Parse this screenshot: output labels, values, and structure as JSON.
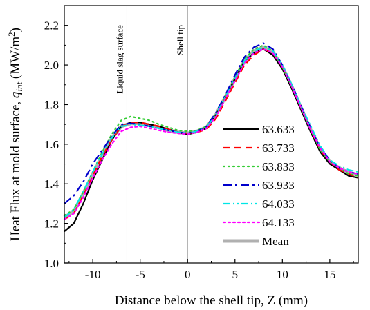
{
  "chart_data": {
    "type": "line",
    "xlabel": "Distance below the shell tip, Z (mm)",
    "ylabel": {
      "main": "Heat Flux at mold surface, ",
      "q": "q",
      "sub": "int",
      "unit": " (MW/m",
      "sup": "2",
      "close": ")"
    },
    "xlim": [
      -13,
      18
    ],
    "ylim": [
      1.0,
      2.3
    ],
    "xticks": [
      -10,
      -5,
      0,
      5,
      10,
      15
    ],
    "yticks": [
      1.0,
      1.2,
      1.4,
      1.6,
      1.8,
      2.0,
      2.2
    ],
    "annotations": [
      {
        "text": "Liquid slag surface",
        "x": -6.4
      },
      {
        "text": "Shell tip",
        "x": 0
      }
    ],
    "legend_position": "center-right",
    "series": [
      {
        "name": "63.633",
        "color": "#000000",
        "style": "solid",
        "x": [
          -13,
          -12,
          -11,
          -10,
          -9,
          -8,
          -7,
          -6,
          -5,
          -4,
          -3,
          -2,
          -1,
          0,
          1,
          2,
          3,
          4,
          5,
          6,
          7,
          8,
          9,
          10,
          11,
          12,
          13,
          14,
          15,
          16,
          17,
          18
        ],
        "y": [
          1.16,
          1.2,
          1.3,
          1.42,
          1.52,
          1.62,
          1.69,
          1.71,
          1.71,
          1.7,
          1.69,
          1.675,
          1.66,
          1.65,
          1.66,
          1.68,
          1.75,
          1.84,
          1.93,
          2.02,
          2.06,
          2.08,
          2.05,
          1.98,
          1.88,
          1.77,
          1.66,
          1.56,
          1.5,
          1.47,
          1.44,
          1.43
        ]
      },
      {
        "name": "63.733",
        "color": "#ff0000",
        "style": "dash",
        "x": [
          -13,
          -12,
          -11,
          -10,
          -9,
          -8,
          -7,
          -6,
          -5,
          -4,
          -3,
          -2,
          -1,
          0,
          1,
          2,
          3,
          4,
          5,
          6,
          7,
          8,
          9,
          10,
          11,
          12,
          13,
          14,
          15,
          16,
          17,
          18
        ],
        "y": [
          1.22,
          1.25,
          1.34,
          1.44,
          1.54,
          1.62,
          1.69,
          1.71,
          1.71,
          1.7,
          1.69,
          1.675,
          1.66,
          1.655,
          1.66,
          1.675,
          1.73,
          1.82,
          1.91,
          2.0,
          2.05,
          2.08,
          2.06,
          1.99,
          1.89,
          1.78,
          1.67,
          1.57,
          1.51,
          1.47,
          1.45,
          1.43
        ]
      },
      {
        "name": "63.833",
        "color": "#33cc33",
        "style": "dot",
        "x": [
          -13,
          -12,
          -11,
          -10,
          -9,
          -8,
          -7,
          -6,
          -5,
          -4,
          -3,
          -2,
          -1,
          0,
          1,
          2,
          3,
          4,
          5,
          6,
          7,
          8,
          9,
          10,
          11,
          12,
          13,
          14,
          15,
          16,
          17,
          18
        ],
        "y": [
          1.24,
          1.27,
          1.36,
          1.46,
          1.56,
          1.65,
          1.72,
          1.74,
          1.73,
          1.72,
          1.7,
          1.685,
          1.67,
          1.665,
          1.67,
          1.69,
          1.75,
          1.84,
          1.94,
          2.03,
          2.08,
          2.1,
          2.07,
          1.99,
          1.89,
          1.78,
          1.67,
          1.57,
          1.51,
          1.48,
          1.45,
          1.44
        ]
      },
      {
        "name": "63.933",
        "color": "#0000cc",
        "style": "dashdot",
        "x": [
          -13,
          -12,
          -11,
          -10,
          -9,
          -8,
          -7,
          -6,
          -5,
          -4,
          -3,
          -2,
          -1,
          0,
          1,
          2,
          3,
          4,
          5,
          6,
          7,
          8,
          9,
          10,
          11,
          12,
          13,
          14,
          15,
          16,
          17,
          18
        ],
        "y": [
          1.3,
          1.34,
          1.41,
          1.5,
          1.57,
          1.64,
          1.7,
          1.705,
          1.7,
          1.69,
          1.68,
          1.67,
          1.66,
          1.655,
          1.665,
          1.69,
          1.76,
          1.85,
          1.95,
          2.04,
          2.09,
          2.11,
          2.08,
          2.0,
          1.9,
          1.79,
          1.68,
          1.58,
          1.52,
          1.48,
          1.46,
          1.45
        ]
      },
      {
        "name": "64.033",
        "color": "#00e5e5",
        "style": "dashdotdot",
        "x": [
          -13,
          -12,
          -11,
          -10,
          -9,
          -8,
          -7,
          -6,
          -5,
          -4,
          -3,
          -2,
          -1,
          0,
          1,
          2,
          3,
          4,
          5,
          6,
          7,
          8,
          9,
          10,
          11,
          12,
          13,
          14,
          15,
          16,
          17,
          18
        ],
        "y": [
          1.23,
          1.27,
          1.36,
          1.46,
          1.55,
          1.63,
          1.69,
          1.7,
          1.695,
          1.69,
          1.68,
          1.67,
          1.66,
          1.655,
          1.665,
          1.685,
          1.75,
          1.84,
          1.93,
          2.02,
          2.07,
          2.09,
          2.07,
          2.0,
          1.9,
          1.79,
          1.69,
          1.59,
          1.52,
          1.49,
          1.47,
          1.46
        ]
      },
      {
        "name": "64.133",
        "color": "#ff00ff",
        "style": "shortdot",
        "x": [
          -13,
          -12,
          -11,
          -10,
          -9,
          -8,
          -7,
          -6,
          -5,
          -4,
          -3,
          -2,
          -1,
          0,
          1,
          2,
          3,
          4,
          5,
          6,
          7,
          8,
          9,
          10,
          11,
          12,
          13,
          14,
          15,
          16,
          17,
          18
        ],
        "y": [
          1.22,
          1.25,
          1.33,
          1.43,
          1.52,
          1.6,
          1.665,
          1.685,
          1.69,
          1.68,
          1.67,
          1.66,
          1.655,
          1.65,
          1.66,
          1.68,
          1.74,
          1.83,
          1.92,
          2.01,
          2.06,
          2.08,
          2.06,
          1.99,
          1.89,
          1.78,
          1.67,
          1.58,
          1.51,
          1.48,
          1.46,
          1.45
        ]
      },
      {
        "name": "Mean",
        "color": "#b0b0b0",
        "style": "thick",
        "x": [
          -13,
          -12,
          -11,
          -10,
          -9,
          -8,
          -7,
          -6,
          -5,
          -4,
          -3,
          -2,
          -1,
          0,
          1,
          2,
          3,
          4,
          5,
          6,
          7,
          8,
          9,
          10,
          11,
          12,
          13,
          14,
          15,
          16,
          17,
          18
        ],
        "y": [
          1.23,
          1.26,
          1.35,
          1.45,
          1.54,
          1.63,
          1.69,
          1.705,
          1.705,
          1.695,
          1.685,
          1.67,
          1.66,
          1.655,
          1.665,
          1.685,
          1.75,
          1.84,
          1.93,
          2.02,
          2.07,
          2.09,
          2.065,
          1.99,
          1.89,
          1.78,
          1.67,
          1.575,
          1.51,
          1.48,
          1.455,
          1.445
        ]
      }
    ]
  }
}
